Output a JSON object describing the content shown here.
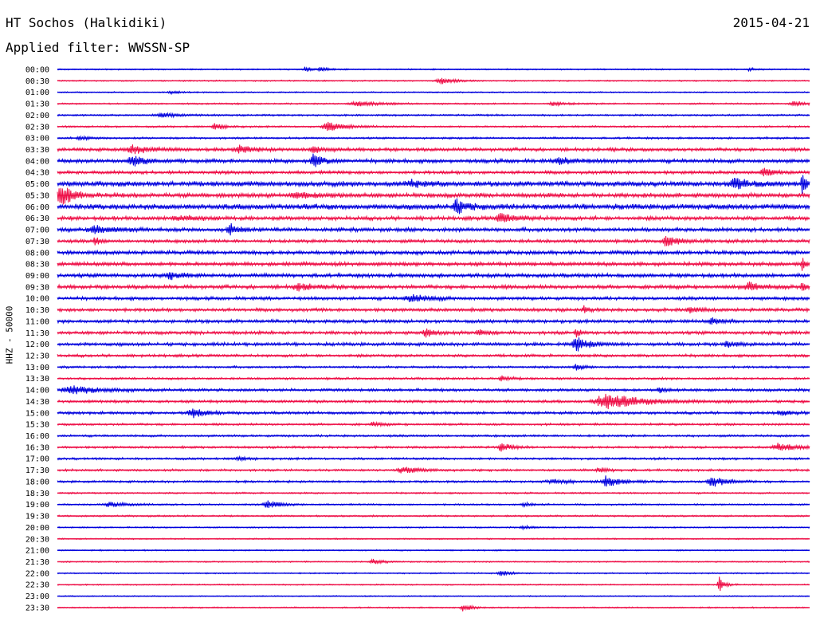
{
  "header": {
    "station": "HT Sochos (Halkidiki)",
    "date": "2015-04-21",
    "filter": "Applied filter: WWSSN-SP"
  },
  "chart_data": {
    "type": "line",
    "title": "HT Sochos (Halkidiki)",
    "subtitle": "Applied filter: WWSSN-SP",
    "ylabel": "HHZ - 50000",
    "colors": [
      "#0000dd",
      "#ee0f47"
    ],
    "hours": [
      "00:00",
      "00:30",
      "01:00",
      "01:30",
      "02:00",
      "02:30",
      "03:00",
      "03:30",
      "04:00",
      "04:30",
      "05:00",
      "05:30",
      "06:00",
      "06:30",
      "07:00",
      "07:30",
      "08:00",
      "08:30",
      "09:00",
      "09:30",
      "10:00",
      "10:30",
      "11:00",
      "11:30",
      "12:00",
      "12:30",
      "13:00",
      "13:30",
      "14:00",
      "14:30",
      "15:00",
      "15:30",
      "16:00",
      "16:30",
      "17:00",
      "17:30",
      "18:00",
      "18:30",
      "19:00",
      "19:30",
      "20:00",
      "20:30",
      "21:00",
      "21:30",
      "22:00",
      "22:30",
      "23:00",
      "23:30"
    ],
    "noise_level": [
      0.12,
      0.12,
      0.12,
      0.14,
      0.16,
      0.16,
      0.18,
      0.3,
      0.35,
      0.3,
      0.45,
      0.4,
      0.5,
      0.35,
      0.35,
      0.3,
      0.35,
      0.35,
      0.35,
      0.35,
      0.3,
      0.3,
      0.3,
      0.3,
      0.3,
      0.25,
      0.2,
      0.2,
      0.25,
      0.25,
      0.25,
      0.2,
      0.2,
      0.2,
      0.2,
      0.2,
      0.2,
      0.15,
      0.15,
      0.15,
      0.12,
      0.12,
      0.12,
      0.12,
      0.12,
      0.12,
      0.1,
      0.12
    ],
    "events": [
      {
        "row": 0,
        "pos": 0.33,
        "amp": 0.6,
        "width": 0.005
      },
      {
        "row": 0,
        "pos": 0.35,
        "amp": 0.5,
        "width": 0.008
      },
      {
        "row": 0,
        "pos": 0.92,
        "amp": 0.4,
        "width": 0.005
      },
      {
        "row": 1,
        "pos": 0.51,
        "amp": 0.6,
        "width": 0.015
      },
      {
        "row": 2,
        "pos": 0.15,
        "amp": 0.3,
        "width": 0.01
      },
      {
        "row": 3,
        "pos": 0.4,
        "amp": 0.4,
        "width": 0.03
      },
      {
        "row": 3,
        "pos": 0.66,
        "amp": 0.4,
        "width": 0.015
      },
      {
        "row": 3,
        "pos": 0.98,
        "amp": 0.5,
        "width": 0.015
      },
      {
        "row": 4,
        "pos": 0.14,
        "amp": 0.4,
        "width": 0.02
      },
      {
        "row": 5,
        "pos": 0.21,
        "amp": 0.7,
        "width": 0.01
      },
      {
        "row": 5,
        "pos": 0.36,
        "amp": 0.9,
        "width": 0.02
      },
      {
        "row": 6,
        "pos": 0.03,
        "amp": 0.4,
        "width": 0.01
      },
      {
        "row": 7,
        "pos": 0.1,
        "amp": 0.8,
        "width": 0.02
      },
      {
        "row": 7,
        "pos": 0.24,
        "amp": 0.8,
        "width": 0.015
      },
      {
        "row": 7,
        "pos": 0.34,
        "amp": 0.9,
        "width": 0.01
      },
      {
        "row": 8,
        "pos": 0.1,
        "amp": 1.0,
        "width": 0.015
      },
      {
        "row": 8,
        "pos": 0.34,
        "amp": 1.4,
        "width": 0.01
      },
      {
        "row": 8,
        "pos": 0.67,
        "amp": 0.6,
        "width": 0.02
      },
      {
        "row": 9,
        "pos": 0.94,
        "amp": 0.8,
        "width": 0.01
      },
      {
        "row": 10,
        "pos": 0.47,
        "amp": 0.6,
        "width": 0.02
      },
      {
        "row": 10,
        "pos": 0.9,
        "amp": 1.3,
        "width": 0.015
      },
      {
        "row": 10,
        "pos": 0.99,
        "amp": 2.2,
        "width": 0.004
      },
      {
        "row": 11,
        "pos": 0.005,
        "amp": 2.6,
        "width": 0.012
      },
      {
        "row": 11,
        "pos": 0.32,
        "amp": 0.5,
        "width": 0.03
      },
      {
        "row": 12,
        "pos": 0.53,
        "amp": 1.5,
        "width": 0.012
      },
      {
        "row": 13,
        "pos": 0.16,
        "amp": 0.5,
        "width": 0.02
      },
      {
        "row": 13,
        "pos": 0.59,
        "amp": 0.8,
        "width": 0.02
      },
      {
        "row": 14,
        "pos": 0.05,
        "amp": 0.8,
        "width": 0.02
      },
      {
        "row": 14,
        "pos": 0.23,
        "amp": 1.0,
        "width": 0.01
      },
      {
        "row": 15,
        "pos": 0.81,
        "amp": 1.1,
        "width": 0.012
      },
      {
        "row": 15,
        "pos": 0.05,
        "amp": 1.2,
        "width": 0.004
      },
      {
        "row": 17,
        "pos": 0.99,
        "amp": 1.4,
        "width": 0.004
      },
      {
        "row": 18,
        "pos": 0.15,
        "amp": 0.6,
        "width": 0.015
      },
      {
        "row": 19,
        "pos": 0.32,
        "amp": 0.7,
        "width": 0.015
      },
      {
        "row": 19,
        "pos": 0.92,
        "amp": 0.8,
        "width": 0.015
      },
      {
        "row": 19,
        "pos": 0.99,
        "amp": 1.2,
        "width": 0.004
      },
      {
        "row": 20,
        "pos": 0.47,
        "amp": 0.8,
        "width": 0.02
      },
      {
        "row": 21,
        "pos": 0.84,
        "amp": 0.6,
        "width": 0.01
      },
      {
        "row": 21,
        "pos": 0.7,
        "amp": 0.6,
        "width": 0.005
      },
      {
        "row": 22,
        "pos": 0.87,
        "amp": 0.6,
        "width": 0.01
      },
      {
        "row": 23,
        "pos": 0.49,
        "amp": 0.8,
        "width": 0.01
      },
      {
        "row": 23,
        "pos": 0.56,
        "amp": 0.6,
        "width": 0.01
      },
      {
        "row": 23,
        "pos": 0.69,
        "amp": 0.8,
        "width": 0.005
      },
      {
        "row": 24,
        "pos": 0.69,
        "amp": 1.3,
        "width": 0.015
      },
      {
        "row": 24,
        "pos": 0.89,
        "amp": 0.6,
        "width": 0.01
      },
      {
        "row": 26,
        "pos": 0.69,
        "amp": 0.6,
        "width": 0.01
      },
      {
        "row": 27,
        "pos": 0.59,
        "amp": 0.5,
        "width": 0.01
      },
      {
        "row": 28,
        "pos": 0.02,
        "amp": 0.8,
        "width": 0.03
      },
      {
        "row": 28,
        "pos": 0.8,
        "amp": 0.5,
        "width": 0.01
      },
      {
        "row": 29,
        "pos": 0.73,
        "amp": 1.5,
        "width": 0.04
      },
      {
        "row": 30,
        "pos": 0.18,
        "amp": 0.9,
        "width": 0.015
      },
      {
        "row": 30,
        "pos": 0.96,
        "amp": 0.5,
        "width": 0.01
      },
      {
        "row": 31,
        "pos": 0.42,
        "amp": 0.4,
        "width": 0.01
      },
      {
        "row": 33,
        "pos": 0.59,
        "amp": 0.9,
        "width": 0.01
      },
      {
        "row": 33,
        "pos": 0.96,
        "amp": 0.8,
        "width": 0.02
      },
      {
        "row": 34,
        "pos": 0.24,
        "amp": 0.4,
        "width": 0.01
      },
      {
        "row": 35,
        "pos": 0.46,
        "amp": 0.6,
        "width": 0.02
      },
      {
        "row": 35,
        "pos": 0.72,
        "amp": 0.5,
        "width": 0.01
      },
      {
        "row": 36,
        "pos": 0.73,
        "amp": 1.1,
        "width": 0.015
      },
      {
        "row": 36,
        "pos": 0.87,
        "amp": 1.2,
        "width": 0.015
      },
      {
        "row": 36,
        "pos": 0.66,
        "amp": 0.4,
        "width": 0.02
      },
      {
        "row": 38,
        "pos": 0.07,
        "amp": 0.5,
        "width": 0.02
      },
      {
        "row": 38,
        "pos": 0.28,
        "amp": 0.8,
        "width": 0.015
      },
      {
        "row": 38,
        "pos": 0.62,
        "amp": 0.4,
        "width": 0.01
      },
      {
        "row": 40,
        "pos": 0.62,
        "amp": 0.4,
        "width": 0.01
      },
      {
        "row": 43,
        "pos": 0.42,
        "amp": 0.5,
        "width": 0.01
      },
      {
        "row": 44,
        "pos": 0.59,
        "amp": 0.6,
        "width": 0.01
      },
      {
        "row": 45,
        "pos": 0.88,
        "amp": 1.6,
        "width": 0.006
      },
      {
        "row": 47,
        "pos": 0.54,
        "amp": 0.7,
        "width": 0.01
      }
    ]
  }
}
